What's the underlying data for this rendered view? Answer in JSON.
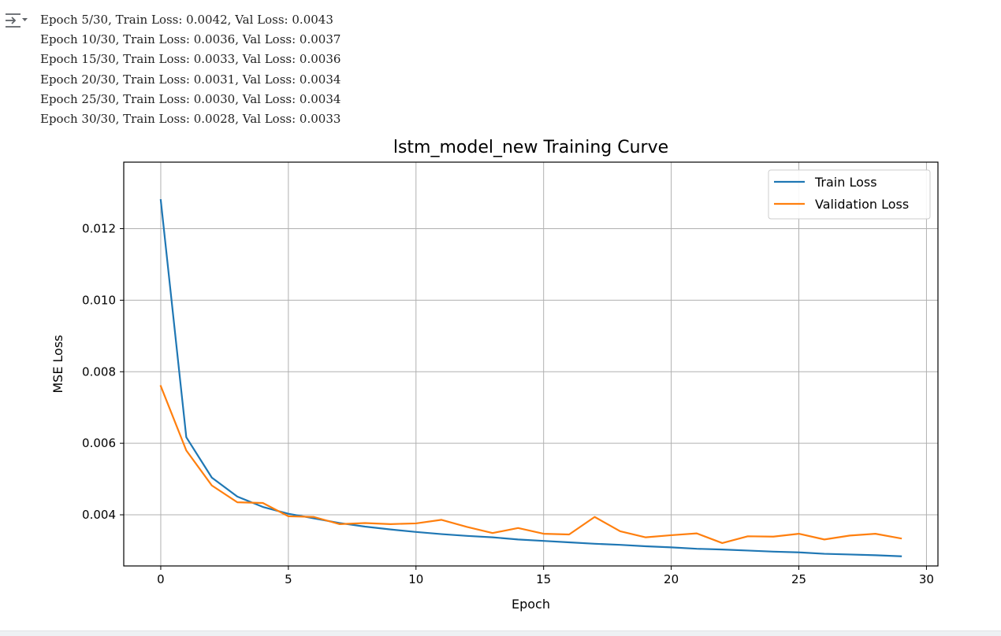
{
  "output": {
    "toggle_icon": "output-collapse-icon",
    "log_lines": [
      "Epoch 5/30, Train Loss: 0.0042, Val Loss: 0.0043",
      "Epoch 10/30, Train Loss: 0.0036, Val Loss: 0.0037",
      "Epoch 15/30, Train Loss: 0.0033, Val Loss: 0.0036",
      "Epoch 20/30, Train Loss: 0.0031, Val Loss: 0.0034",
      "Epoch 25/30, Train Loss: 0.0030, Val Loss: 0.0034",
      "Epoch 30/30, Train Loss: 0.0028, Val Loss: 0.0033"
    ]
  },
  "chart_data": {
    "type": "line",
    "title": "lstm_model_new Training Curve",
    "xlabel": "Epoch",
    "ylabel": "MSE Loss",
    "xlim": [
      -1.45,
      30.45
    ],
    "ylim": [
      0.00257,
      0.01386
    ],
    "xticks": [
      0,
      5,
      10,
      15,
      20,
      25,
      30
    ],
    "xtick_labels": [
      "0",
      "5",
      "10",
      "15",
      "20",
      "25",
      "30"
    ],
    "yticks": [
      0.004,
      0.006,
      0.008,
      0.01,
      0.012
    ],
    "ytick_labels": [
      "0.004",
      "0.006",
      "0.008",
      "0.010",
      "0.012"
    ],
    "grid": true,
    "legend_position": "top-right",
    "x": [
      0,
      1,
      2,
      3,
      4,
      5,
      6,
      7,
      8,
      9,
      10,
      11,
      12,
      13,
      14,
      15,
      16,
      17,
      18,
      19,
      20,
      21,
      22,
      23,
      24,
      25,
      26,
      27,
      28,
      29
    ],
    "series": [
      {
        "name": "Train Loss",
        "color": "#1f77b4",
        "values": [
          0.0128,
          0.00617,
          0.00504,
          0.00451,
          0.00422,
          0.00403,
          0.0039,
          0.00377,
          0.00367,
          0.00359,
          0.00352,
          0.00346,
          0.00341,
          0.00337,
          0.00331,
          0.00327,
          0.00323,
          0.00319,
          0.00316,
          0.00312,
          0.00309,
          0.00305,
          0.00303,
          0.003,
          0.00297,
          0.00295,
          0.00291,
          0.00289,
          0.00287,
          0.00284
        ]
      },
      {
        "name": "Validation Loss",
        "color": "#ff7f0e",
        "values": [
          0.0076,
          0.0058,
          0.00482,
          0.00435,
          0.00433,
          0.00396,
          0.00394,
          0.00374,
          0.00377,
          0.00374,
          0.00376,
          0.00386,
          0.00366,
          0.00349,
          0.00363,
          0.00347,
          0.00345,
          0.00394,
          0.00354,
          0.00337,
          0.00343,
          0.00348,
          0.00321,
          0.0034,
          0.00339,
          0.00347,
          0.00331,
          0.00342,
          0.00347,
          0.00334
        ]
      }
    ]
  }
}
